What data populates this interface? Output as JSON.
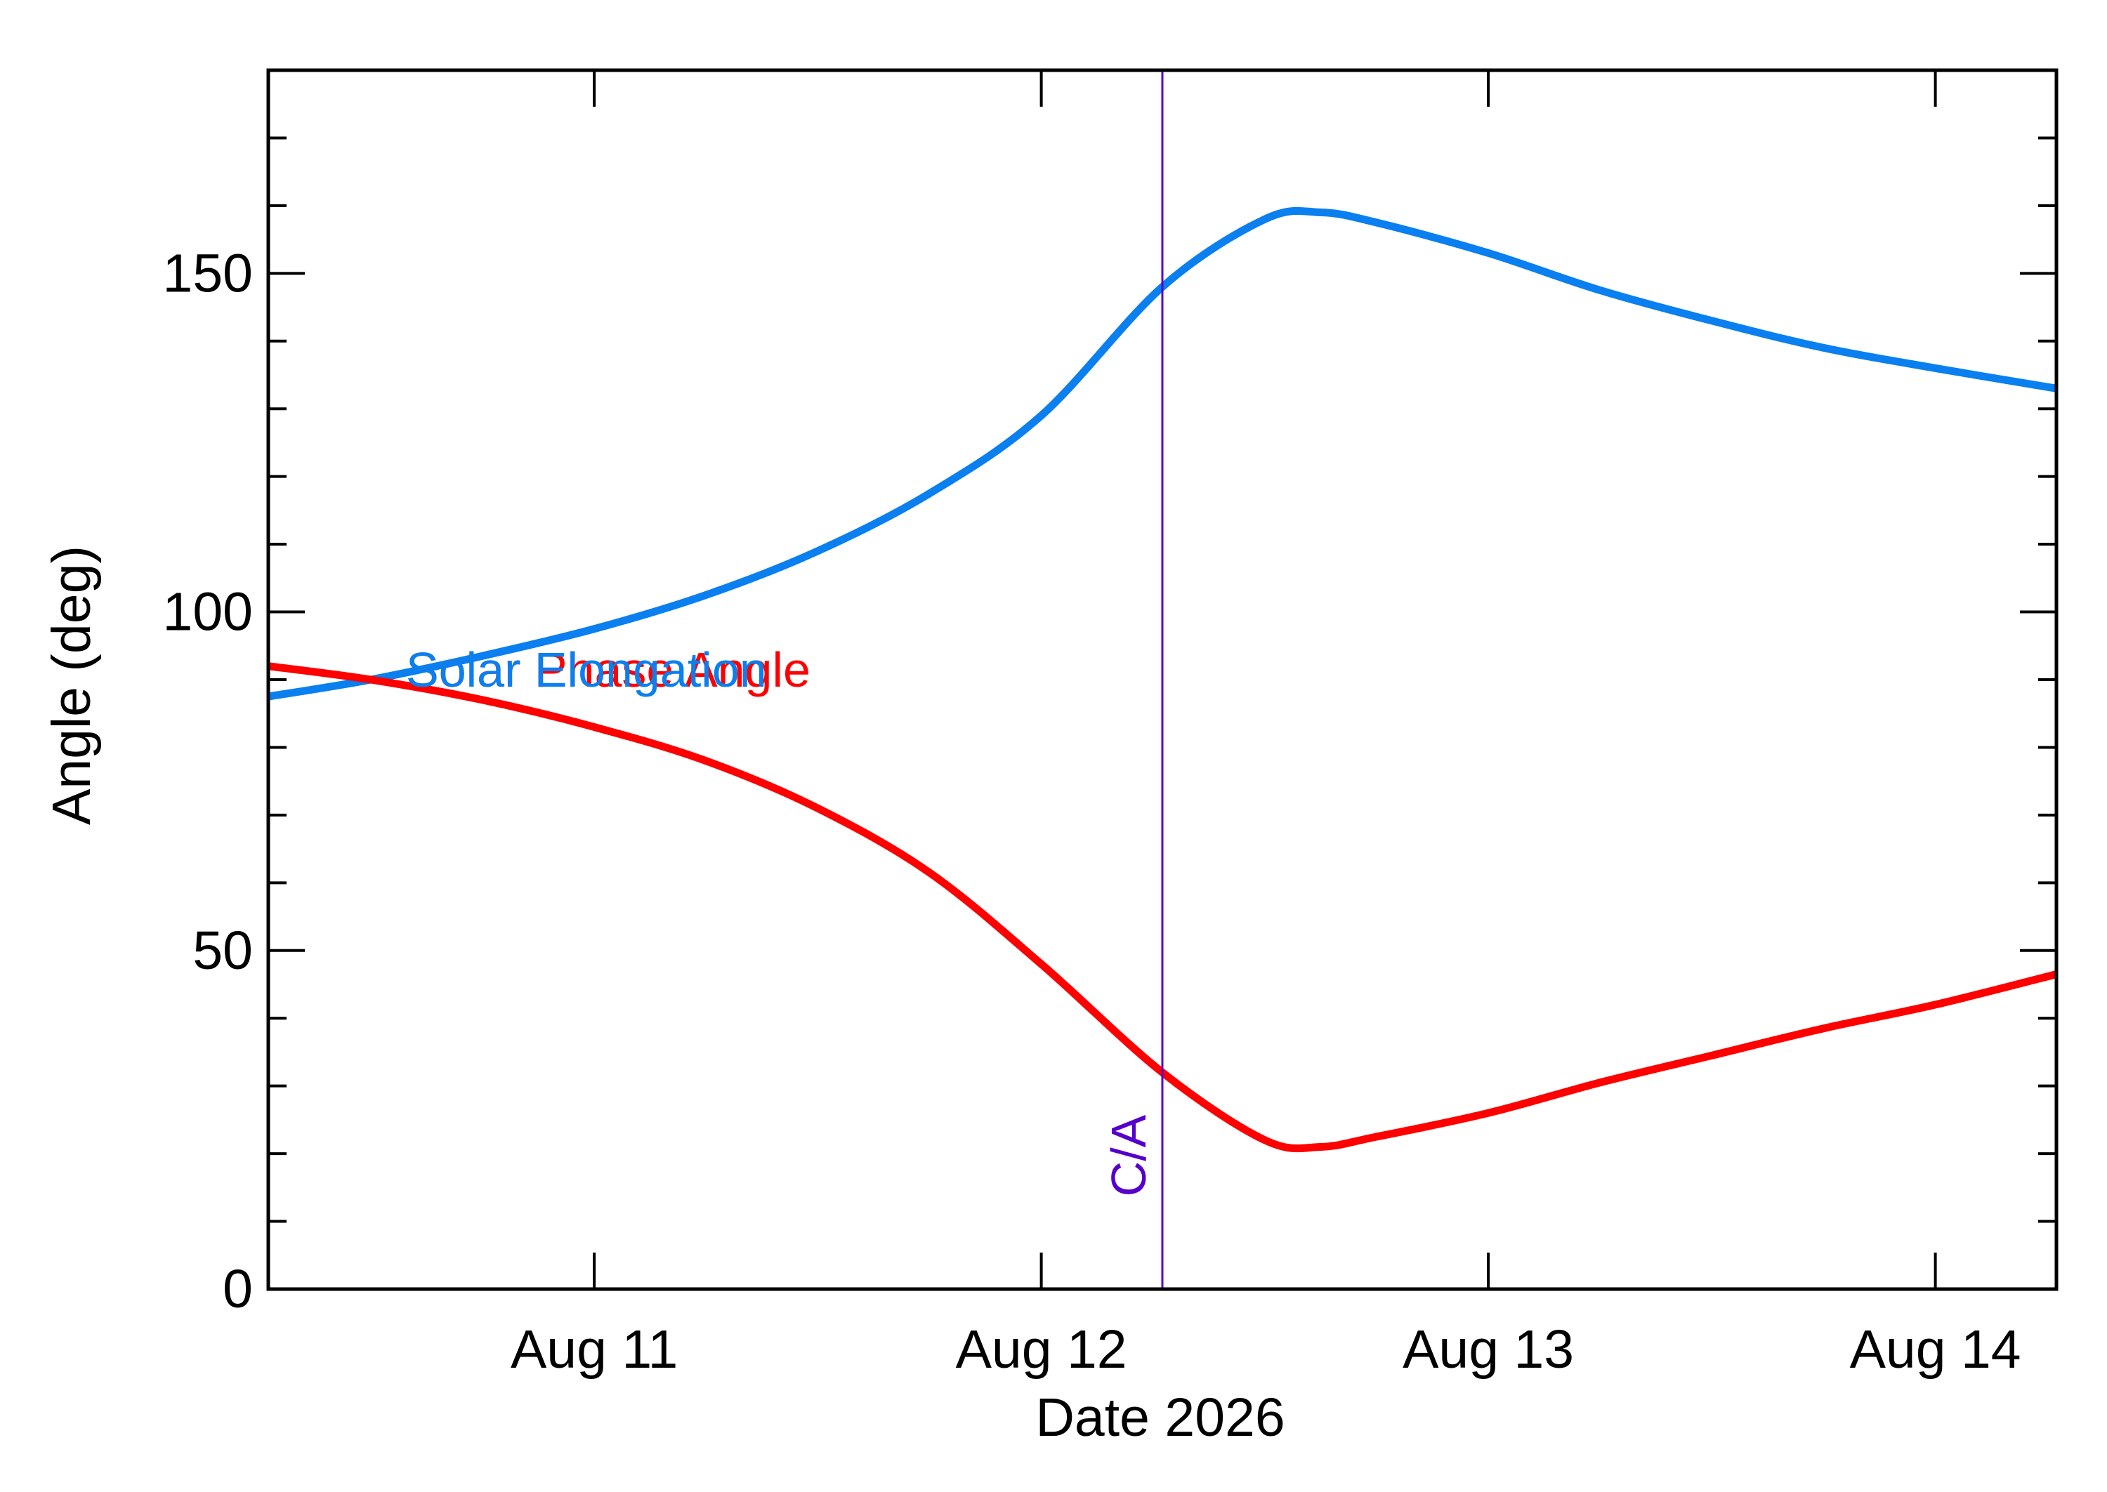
{
  "chart_data": {
    "type": "line",
    "title": "",
    "xlabel": "Date 2026",
    "ylabel": "Angle (deg)",
    "xlim": [
      "2026-08-10T06:30",
      "2026-08-14T06:30"
    ],
    "ylim": [
      0,
      180
    ],
    "x_ticks": [
      {
        "value": "2026-08-11",
        "label": "Aug 11"
      },
      {
        "value": "2026-08-12",
        "label": "Aug 12"
      },
      {
        "value": "2026-08-13",
        "label": "Aug 13"
      },
      {
        "value": "2026-08-14",
        "label": "Aug 14"
      }
    ],
    "y_ticks": [
      0,
      50,
      100,
      150
    ],
    "grid": false,
    "series": [
      {
        "name": "Solar Elongation",
        "color": "#0a7ff0",
        "x": [
          "2026-08-10T06:30",
          "2026-08-10T12:00",
          "2026-08-10T18:00",
          "2026-08-11T00:00",
          "2026-08-11T06:00",
          "2026-08-11T12:00",
          "2026-08-11T18:00",
          "2026-08-12T00:00",
          "2026-08-12T06:30",
          "2026-08-12T12:00",
          "2026-08-12T15:00",
          "2026-08-12T18:00",
          "2026-08-13T00:00",
          "2026-08-13T06:00",
          "2026-08-13T12:00",
          "2026-08-13T18:00",
          "2026-08-14T00:00",
          "2026-08-14T06:30"
        ],
        "y": [
          87.5,
          90,
          93.5,
          97.5,
          102.5,
          109,
          117.5,
          129,
          148,
          158,
          159,
          157.5,
          153,
          147.5,
          143,
          139,
          136,
          133
        ]
      },
      {
        "name": "Solar Phase Angle",
        "color": "#ff0000",
        "x": [
          "2026-08-10T06:30",
          "2026-08-10T12:00",
          "2026-08-10T18:00",
          "2026-08-11T00:00",
          "2026-08-11T06:00",
          "2026-08-11T12:00",
          "2026-08-11T18:00",
          "2026-08-12T00:00",
          "2026-08-12T06:30",
          "2026-08-12T12:00",
          "2026-08-12T15:00",
          "2026-08-12T18:00",
          "2026-08-13T00:00",
          "2026-08-13T06:00",
          "2026-08-13T12:00",
          "2026-08-13T18:00",
          "2026-08-14T00:00",
          "2026-08-14T06:30"
        ],
        "y": [
          92,
          90,
          87,
          83,
          78,
          71,
          61.5,
          48,
          32,
          22,
          21,
          22.5,
          26,
          30.5,
          34.5,
          38.5,
          42,
          46.5
        ]
      }
    ],
    "annotations": [
      {
        "type": "vline",
        "x": "2026-08-12T06:30",
        "label": "C/A",
        "color": "#5500cc"
      }
    ]
  }
}
